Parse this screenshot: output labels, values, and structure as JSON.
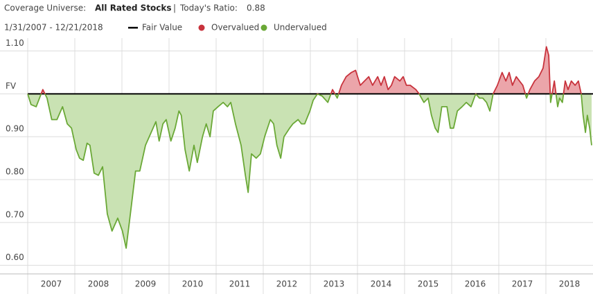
{
  "header": {
    "label": "Coverage Universe:",
    "universe": "All Rated Stocks",
    "separator": "|",
    "ratio_label": "Today's Ratio:",
    "ratio": 0.88,
    "date_range": "1/31/2007 - 12/21/2018"
  },
  "chart_data": {
    "type": "area",
    "legend": [
      {
        "name": "Fair Value",
        "color": "#000000"
      },
      {
        "name": "Overvalued",
        "color": "#c8323c"
      },
      {
        "name": "Undervalued",
        "color": "#6aa836"
      }
    ],
    "fair_value": 1.0,
    "over_fill": "#eba5aa",
    "under_fill": "#c9e2b3",
    "xlim": [
      2007,
      2019
    ],
    "xticks": [
      2007,
      2008,
      2009,
      2010,
      2011,
      2012,
      2013,
      2014,
      2015,
      2016,
      2017,
      2018
    ],
    "ylim": [
      0.58,
      1.13
    ],
    "yticks": [
      {
        "value": 1.1,
        "label": "1.10"
      },
      {
        "value": 1.0,
        "label": "FV"
      },
      {
        "value": 0.9,
        "label": "0.90"
      },
      {
        "value": 0.8,
        "label": "0.80"
      },
      {
        "value": 0.7,
        "label": "0.70"
      },
      {
        "value": 0.6,
        "label": "0.60"
      }
    ],
    "grid": true,
    "x": [
      2007.0,
      2007.07,
      2007.18,
      2007.32,
      2007.41,
      2007.51,
      2007.62,
      2007.74,
      2007.84,
      2007.93,
      2008.03,
      2008.1,
      2008.18,
      2008.26,
      2008.32,
      2008.41,
      2008.5,
      2008.59,
      2008.69,
      2008.79,
      2008.91,
      2009.01,
      2009.09,
      2009.18,
      2009.29,
      2009.38,
      2009.5,
      2009.62,
      2009.72,
      2009.79,
      2009.87,
      2009.94,
      2010.04,
      2010.13,
      2010.21,
      2010.26,
      2010.34,
      2010.43,
      2010.53,
      2010.6,
      2010.71,
      2010.79,
      2010.87,
      2010.94,
      2011.04,
      2011.15,
      2011.24,
      2011.31,
      2011.41,
      2011.53,
      2011.62,
      2011.68,
      2011.75,
      2011.85,
      2011.94,
      2012.03,
      2012.15,
      2012.22,
      2012.29,
      2012.37,
      2012.44,
      2012.56,
      2012.63,
      2012.74,
      2012.81,
      2012.88,
      2012.99,
      2013.06,
      2013.15,
      2013.25,
      2013.37,
      2013.47,
      2013.57,
      2013.66,
      2013.76,
      2013.87,
      2013.96,
      2014.06,
      2014.15,
      2014.24,
      2014.32,
      2014.43,
      2014.5,
      2014.57,
      2014.65,
      2014.72,
      2014.79,
      2014.9,
      2014.97,
      2015.04,
      2015.12,
      2015.24,
      2015.31,
      2015.41,
      2015.5,
      2015.57,
      2015.65,
      2015.71,
      2015.79,
      2015.9,
      2015.97,
      2016.04,
      2016.12,
      2016.22,
      2016.31,
      2016.41,
      2016.51,
      2016.59,
      2016.66,
      2016.74,
      2016.81,
      2016.88,
      2016.97,
      2017.07,
      2017.15,
      2017.22,
      2017.29,
      2017.37,
      2017.44,
      2017.51,
      2017.59,
      2017.66,
      2017.76,
      2017.85,
      2017.94,
      2018.01,
      2018.06,
      2018.1,
      2018.18,
      2018.25,
      2018.29,
      2018.35,
      2018.41,
      2018.47,
      2018.54,
      2018.62,
      2018.69,
      2018.75,
      2018.79,
      2018.84,
      2018.88,
      2018.93,
      2018.97
    ],
    "values": [
      1.0,
      0.975,
      0.97,
      1.01,
      0.99,
      0.94,
      0.94,
      0.97,
      0.93,
      0.92,
      0.87,
      0.85,
      0.845,
      0.885,
      0.88,
      0.815,
      0.81,
      0.83,
      0.72,
      0.68,
      0.71,
      0.68,
      0.64,
      0.72,
      0.82,
      0.82,
      0.88,
      0.91,
      0.935,
      0.89,
      0.93,
      0.94,
      0.89,
      0.92,
      0.96,
      0.95,
      0.87,
      0.82,
      0.88,
      0.84,
      0.9,
      0.93,
      0.9,
      0.96,
      0.97,
      0.98,
      0.97,
      0.98,
      0.93,
      0.88,
      0.81,
      0.77,
      0.86,
      0.85,
      0.86,
      0.9,
      0.94,
      0.93,
      0.88,
      0.85,
      0.9,
      0.92,
      0.93,
      0.94,
      0.93,
      0.93,
      0.96,
      0.985,
      1.0,
      0.995,
      0.98,
      1.01,
      0.99,
      1.02,
      1.04,
      1.05,
      1.055,
      1.02,
      1.03,
      1.04,
      1.02,
      1.04,
      1.02,
      1.04,
      1.01,
      1.02,
      1.04,
      1.03,
      1.04,
      1.02,
      1.02,
      1.01,
      1.0,
      0.98,
      0.99,
      0.95,
      0.92,
      0.91,
      0.97,
      0.97,
      0.92,
      0.92,
      0.96,
      0.97,
      0.98,
      0.97,
      1.0,
      0.99,
      0.99,
      0.98,
      0.96,
      1.0,
      1.02,
      1.05,
      1.03,
      1.05,
      1.02,
      1.04,
      1.03,
      1.02,
      0.99,
      1.01,
      1.03,
      1.04,
      1.06,
      1.11,
      1.09,
      0.98,
      1.03,
      0.97,
      0.99,
      0.98,
      1.03,
      1.01,
      1.03,
      1.02,
      1.03,
      1.0,
      0.95,
      0.91,
      0.95,
      0.92,
      0.88
    ]
  }
}
